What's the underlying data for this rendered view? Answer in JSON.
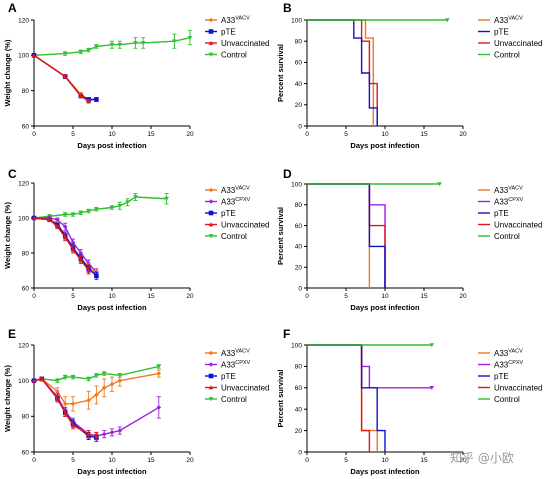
{
  "colors": {
    "A33VACV": "#f07820",
    "A33CPXV": "#a020e0",
    "pTE": "#1010d0",
    "Unvaccinated": "#e01818",
    "Control": "#30c030"
  },
  "watermark": "知乎 @小欧",
  "chart_data": [
    {
      "id": "A",
      "panel_label": "A",
      "type": "line",
      "xlabel": "Days post infection",
      "ylabel": "Weight change (%)",
      "xlim": [
        0,
        20
      ],
      "ylim": [
        60,
        120
      ],
      "xticks": [
        0,
        5,
        10,
        15,
        20
      ],
      "yticks": [
        60,
        80,
        100,
        120
      ],
      "xtick_labels": [
        "0",
        "5",
        "10",
        "15",
        "20"
      ],
      "ytick_labels": [
        "60",
        "80",
        "100",
        "120"
      ],
      "legend": [
        {
          "key": "A33VACV",
          "base": "A33",
          "sup": "VACV",
          "marker": "diamond"
        },
        {
          "key": "pTE",
          "base": "pTE",
          "sup": "",
          "marker": "square"
        },
        {
          "key": "Unvaccinated",
          "base": "Unvaccinated",
          "sup": "",
          "marker": "triangle"
        },
        {
          "key": "Control",
          "base": "Control",
          "sup": "",
          "marker": "triangle-down"
        }
      ],
      "series": [
        {
          "name": "Control",
          "key": "Control",
          "marker": "triangle-down",
          "x": [
            0,
            4,
            6,
            7,
            8,
            10,
            11,
            13,
            14,
            18,
            20
          ],
          "y": [
            100,
            101,
            102,
            103,
            105,
            106,
            106,
            107,
            107,
            108,
            110
          ],
          "err": [
            0,
            1,
            1,
            1,
            1,
            2,
            2,
            3,
            3,
            4,
            4
          ]
        },
        {
          "name": "A33VACV",
          "key": "A33VACV",
          "marker": "diamond",
          "x": [
            0,
            4,
            6,
            7,
            8
          ],
          "y": [
            100,
            88,
            78,
            75,
            75
          ],
          "err": [
            0,
            1,
            1,
            1,
            1
          ]
        },
        {
          "name": "pTE",
          "key": "pTE",
          "marker": "square",
          "x": [
            0,
            4,
            6,
            7,
            8
          ],
          "y": [
            100,
            88,
            77,
            75,
            75
          ],
          "err": [
            0,
            1,
            1,
            1,
            1
          ]
        },
        {
          "name": "Unvaccinated",
          "key": "Unvaccinated",
          "marker": "triangle",
          "x": [
            0,
            4,
            6,
            7
          ],
          "y": [
            100,
            88,
            77,
            74
          ],
          "err": [
            0,
            1,
            1,
            1
          ]
        }
      ]
    },
    {
      "id": "B",
      "panel_label": "B",
      "type": "step",
      "xlabel": "Days post infection",
      "ylabel": "Percent survival",
      "xlim": [
        0,
        20
      ],
      "ylim": [
        0,
        100
      ],
      "xticks": [
        0,
        5,
        10,
        15,
        20
      ],
      "yticks": [
        0,
        20,
        40,
        60,
        80,
        100
      ],
      "xtick_labels": [
        "0",
        "5",
        "10",
        "15",
        "20"
      ],
      "ytick_labels": [
        "0",
        "20",
        "40",
        "60",
        "80",
        "100"
      ],
      "legend": [
        {
          "key": "A33VACV",
          "base": "A33",
          "sup": "VACV",
          "marker": "none"
        },
        {
          "key": "pTE",
          "base": "pTE",
          "sup": "",
          "marker": "none"
        },
        {
          "key": "Unvaccinated",
          "base": "Unvaccinated",
          "sup": "",
          "marker": "none"
        },
        {
          "key": "Control",
          "base": "Control",
          "sup": "",
          "marker": "none"
        }
      ],
      "series": [
        {
          "name": "A33VACV",
          "key": "A33VACV",
          "x": [
            0,
            7.5,
            8.5
          ],
          "y": [
            100,
            83,
            0
          ]
        },
        {
          "name": "Unvaccinated",
          "key": "Unvaccinated",
          "x": [
            0,
            7,
            8,
            8.5,
            9
          ],
          "y": [
            100,
            80,
            40,
            40,
            0
          ]
        },
        {
          "name": "pTE",
          "key": "pTE",
          "x": [
            0,
            6,
            7,
            8,
            9
          ],
          "y": [
            100,
            83,
            50,
            17,
            0
          ]
        },
        {
          "name": "Control",
          "key": "Control",
          "x": [
            0,
            18
          ],
          "y": [
            100,
            100
          ],
          "end_marker": true
        }
      ]
    },
    {
      "id": "C",
      "panel_label": "C",
      "type": "line",
      "xlabel": "Days post infection",
      "ylabel": "Weight change (%)",
      "xlim": [
        0,
        20
      ],
      "ylim": [
        60,
        120
      ],
      "xticks": [
        0,
        5,
        10,
        15,
        20
      ],
      "yticks": [
        60,
        80,
        100,
        120
      ],
      "xtick_labels": [
        "0",
        "5",
        "10",
        "15",
        "20"
      ],
      "ytick_labels": [
        "60",
        "80",
        "100",
        "120"
      ],
      "legend": [
        {
          "key": "A33VACV",
          "base": "A33",
          "sup": "VACV",
          "marker": "diamond"
        },
        {
          "key": "A33CPXV",
          "base": "A33",
          "sup": "CPXV",
          "marker": "diamond"
        },
        {
          "key": "pTE",
          "base": "pTE",
          "sup": "",
          "marker": "square"
        },
        {
          "key": "Unvaccinated",
          "base": "Unvaccinated",
          "sup": "",
          "marker": "triangle"
        },
        {
          "key": "Control",
          "base": "Control",
          "sup": "",
          "marker": "triangle-down"
        }
      ],
      "series": [
        {
          "name": "Control",
          "key": "Control",
          "marker": "triangle-down",
          "x": [
            0,
            2,
            4,
            5,
            6,
            7,
            8,
            10,
            11,
            12,
            13,
            17
          ],
          "y": [
            100,
            101,
            102,
            102,
            103,
            104,
            105,
            106,
            107,
            109,
            112,
            111
          ],
          "err": [
            0,
            1,
            1,
            1,
            1,
            1,
            1,
            1,
            2,
            2,
            2,
            3
          ]
        },
        {
          "name": "A33CPXV",
          "key": "A33CPXV",
          "marker": "diamond",
          "x": [
            0,
            2,
            3,
            4,
            5,
            6,
            7,
            8
          ],
          "y": [
            100,
            100,
            99,
            95,
            86,
            80,
            74,
            69
          ],
          "err": [
            0,
            1,
            1,
            2,
            2,
            2,
            2,
            2
          ]
        },
        {
          "name": "A33VACV",
          "key": "A33VACV",
          "marker": "diamond",
          "x": [
            0,
            2,
            3,
            4,
            5,
            6,
            7,
            8
          ],
          "y": [
            100,
            99,
            97,
            90,
            83,
            77,
            72,
            68
          ],
          "err": [
            0,
            1,
            1,
            2,
            2,
            2,
            2,
            2
          ]
        },
        {
          "name": "pTE",
          "key": "pTE",
          "marker": "square",
          "x": [
            0,
            2,
            3,
            4,
            5,
            6,
            7,
            8
          ],
          "y": [
            100,
            99,
            96,
            90,
            83,
            77,
            71,
            67
          ],
          "err": [
            0,
            1,
            1,
            2,
            2,
            2,
            2,
            2
          ]
        },
        {
          "name": "Unvaccinated",
          "key": "Unvaccinated",
          "marker": "triangle",
          "x": [
            0,
            2,
            3,
            4,
            5,
            6,
            7
          ],
          "y": [
            100,
            99,
            95,
            89,
            82,
            76,
            70
          ],
          "err": [
            0,
            1,
            1,
            2,
            2,
            2,
            2
          ]
        }
      ]
    },
    {
      "id": "D",
      "panel_label": "D",
      "type": "step",
      "xlabel": "Days post infection",
      "ylabel": "Percent survival",
      "xlim": [
        0,
        20
      ],
      "ylim": [
        0,
        100
      ],
      "xticks": [
        0,
        5,
        10,
        15,
        20
      ],
      "yticks": [
        0,
        20,
        40,
        60,
        80,
        100
      ],
      "xtick_labels": [
        "0",
        "5",
        "10",
        "15",
        "20"
      ],
      "ytick_labels": [
        "0",
        "20",
        "40",
        "60",
        "80",
        "100"
      ],
      "legend": [
        {
          "key": "A33VACV",
          "base": "A33",
          "sup": "VACV",
          "marker": "none"
        },
        {
          "key": "A33CPXV",
          "base": "A33",
          "sup": "CPXV",
          "marker": "none"
        },
        {
          "key": "pTE",
          "base": "pTE",
          "sup": "",
          "marker": "none"
        },
        {
          "key": "Unvaccinated",
          "base": "Unvaccinated",
          "sup": "",
          "marker": "none"
        },
        {
          "key": "Control",
          "base": "Control",
          "sup": "",
          "marker": "none"
        }
      ],
      "series": [
        {
          "name": "A33VACV",
          "key": "A33VACV",
          "x": [
            0,
            8
          ],
          "y": [
            100,
            0
          ]
        },
        {
          "name": "A33CPXV",
          "key": "A33CPXV",
          "x": [
            0,
            8,
            10
          ],
          "y": [
            100,
            80,
            0
          ]
        },
        {
          "name": "Unvaccinated",
          "key": "Unvaccinated",
          "x": [
            0,
            8,
            10
          ],
          "y": [
            100,
            60,
            0
          ]
        },
        {
          "name": "pTE",
          "key": "pTE",
          "x": [
            0,
            8,
            10
          ],
          "y": [
            100,
            40,
            0
          ]
        },
        {
          "name": "Control",
          "key": "Control",
          "x": [
            0,
            17
          ],
          "y": [
            100,
            100
          ],
          "end_marker": true
        }
      ]
    },
    {
      "id": "E",
      "panel_label": "E",
      "type": "line",
      "xlabel": "Days post infection",
      "ylabel": "Weight change (%)",
      "xlim": [
        0,
        20
      ],
      "ylim": [
        60,
        120
      ],
      "xticks": [
        0,
        5,
        10,
        15,
        20
      ],
      "yticks": [
        60,
        80,
        100,
        120
      ],
      "xtick_labels": [
        "0",
        "5",
        "10",
        "15",
        "20"
      ],
      "ytick_labels": [
        "60",
        "80",
        "100",
        "120"
      ],
      "legend": [
        {
          "key": "A33VACV",
          "base": "A33",
          "sup": "VACV",
          "marker": "diamond"
        },
        {
          "key": "A33CPXV",
          "base": "A33",
          "sup": "CPXV",
          "marker": "diamond"
        },
        {
          "key": "pTE",
          "base": "pTE",
          "sup": "",
          "marker": "square"
        },
        {
          "key": "Unvaccinated",
          "base": "Unvaccinated",
          "sup": "",
          "marker": "triangle"
        },
        {
          "key": "Control",
          "base": "Control",
          "sup": "",
          "marker": "triangle-down"
        }
      ],
      "series": [
        {
          "name": "Control",
          "key": "Control",
          "marker": "triangle-down",
          "x": [
            0,
            1,
            3,
            4,
            5,
            7,
            8,
            9,
            11,
            16
          ],
          "y": [
            100,
            101,
            100,
            102,
            102,
            101,
            103,
            104,
            103,
            108
          ],
          "err": [
            0,
            1,
            1,
            1,
            1,
            1,
            1,
            1,
            1,
            1
          ]
        },
        {
          "name": "A33VACV",
          "key": "A33VACV",
          "marker": "diamond",
          "x": [
            0,
            1,
            3,
            4,
            5,
            7,
            8,
            9,
            10,
            11,
            16
          ],
          "y": [
            100,
            101,
            94,
            87,
            87,
            89,
            92,
            96,
            98,
            100,
            104
          ],
          "err": [
            0,
            1,
            2,
            4,
            4,
            5,
            5,
            5,
            4,
            3,
            2
          ]
        },
        {
          "name": "A33CPXV",
          "key": "A33CPXV",
          "marker": "diamond",
          "x": [
            0,
            1,
            3,
            4,
            5,
            7,
            8,
            9,
            10,
            11,
            16
          ],
          "y": [
            100,
            101,
            91,
            83,
            77,
            70,
            69,
            70,
            71,
            72,
            85
          ],
          "err": [
            0,
            1,
            2,
            2,
            2,
            2,
            2,
            2,
            2,
            2,
            6
          ]
        },
        {
          "name": "pTE",
          "key": "pTE",
          "marker": "square",
          "x": [
            0,
            1,
            3,
            4,
            5,
            7,
            8
          ],
          "y": [
            100,
            101,
            90,
            82,
            76,
            69,
            68
          ],
          "err": [
            0,
            1,
            2,
            2,
            2,
            2,
            2
          ]
        },
        {
          "name": "Unvaccinated",
          "key": "Unvaccinated",
          "marker": "triangle",
          "x": [
            0,
            1,
            3,
            4,
            5,
            7,
            8
          ],
          "y": [
            100,
            101,
            90,
            82,
            75,
            70,
            69
          ],
          "err": [
            0,
            1,
            2,
            2,
            2,
            2,
            2
          ]
        }
      ]
    },
    {
      "id": "F",
      "panel_label": "F",
      "type": "step",
      "xlabel": "Days post infection",
      "ylabel": "Percent survival",
      "xlim": [
        0,
        20
      ],
      "ylim": [
        0,
        100
      ],
      "xticks": [
        0,
        5,
        10,
        15,
        20
      ],
      "yticks": [
        0,
        20,
        40,
        60,
        80,
        100
      ],
      "xtick_labels": [
        "0",
        "5",
        "10",
        "15",
        "20"
      ],
      "ytick_labels": [
        "0",
        "20",
        "40",
        "60",
        "80",
        "100"
      ],
      "legend": [
        {
          "key": "A33VACV",
          "base": "A33",
          "sup": "VACV",
          "marker": "none"
        },
        {
          "key": "A33CPXV",
          "base": "A33",
          "sup": "CPXV",
          "marker": "none"
        },
        {
          "key": "pTE",
          "base": "pTE",
          "sup": "",
          "marker": "none"
        },
        {
          "key": "Unvaccinated",
          "base": "Unvaccinated",
          "sup": "",
          "marker": "none"
        },
        {
          "key": "Control",
          "base": "Control",
          "sup": "",
          "marker": "none"
        }
      ],
      "series": [
        {
          "name": "A33CPXV",
          "key": "A33CPXV",
          "x": [
            0,
            7,
            8,
            16
          ],
          "y": [
            100,
            80,
            60,
            60
          ],
          "end_marker": true
        },
        {
          "name": "A33VACV",
          "key": "A33VACV",
          "x": [
            0,
            7,
            8,
            9
          ],
          "y": [
            100,
            20,
            20,
            0
          ]
        },
        {
          "name": "Unvaccinated",
          "key": "Unvaccinated",
          "x": [
            0,
            7,
            8
          ],
          "y": [
            100,
            20,
            0
          ]
        },
        {
          "name": "pTE",
          "key": "pTE",
          "x": [
            0,
            7,
            9,
            10
          ],
          "y": [
            100,
            60,
            20,
            0
          ]
        },
        {
          "name": "Control",
          "key": "Control",
          "x": [
            0,
            16
          ],
          "y": [
            100,
            100
          ],
          "end_marker": true
        }
      ]
    }
  ]
}
